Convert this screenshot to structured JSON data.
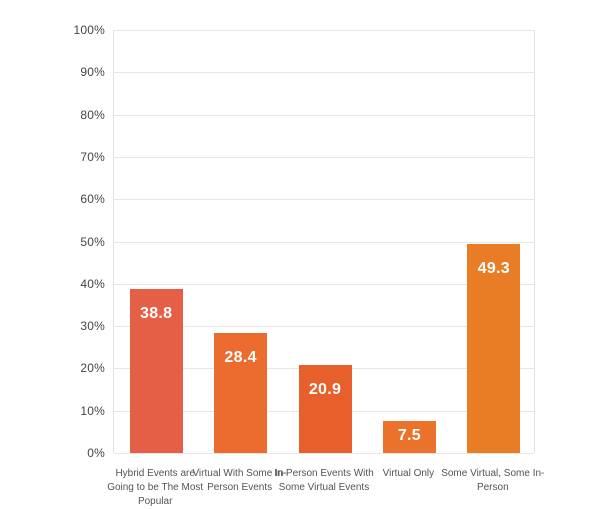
{
  "chart_data": {
    "type": "bar",
    "title": "",
    "xlabel": "",
    "ylabel": "",
    "categories": [
      "Hybrid Events are Going to be The Most Popular",
      "Virtual With Some In-Person Events",
      "In-Person Events With Some Virtual Events",
      "Virtual Only",
      "Some Virtual, Some In-Person"
    ],
    "values": [
      38.8,
      28.4,
      20.9,
      7.5,
      49.3
    ],
    "value_labels": [
      "38.8",
      "28.4",
      "20.9",
      "7.5",
      "49.3"
    ],
    "bar_colors": [
      "#e45f46",
      "#ec6b2e",
      "#e7602c",
      "#ea722b",
      "#e87d26"
    ],
    "value_label_color": "#ffffff",
    "ylim": [
      0,
      100
    ],
    "yticks": [
      "0%",
      "10%",
      "20%",
      "30%",
      "40%",
      "50%",
      "60%",
      "70%",
      "80%",
      "90%",
      "100%"
    ],
    "grid": "horizontal",
    "gridline_color": "#e7e7e7",
    "tick_label_color": "#454545",
    "category_label_color": "#57534e",
    "legend": "none"
  }
}
